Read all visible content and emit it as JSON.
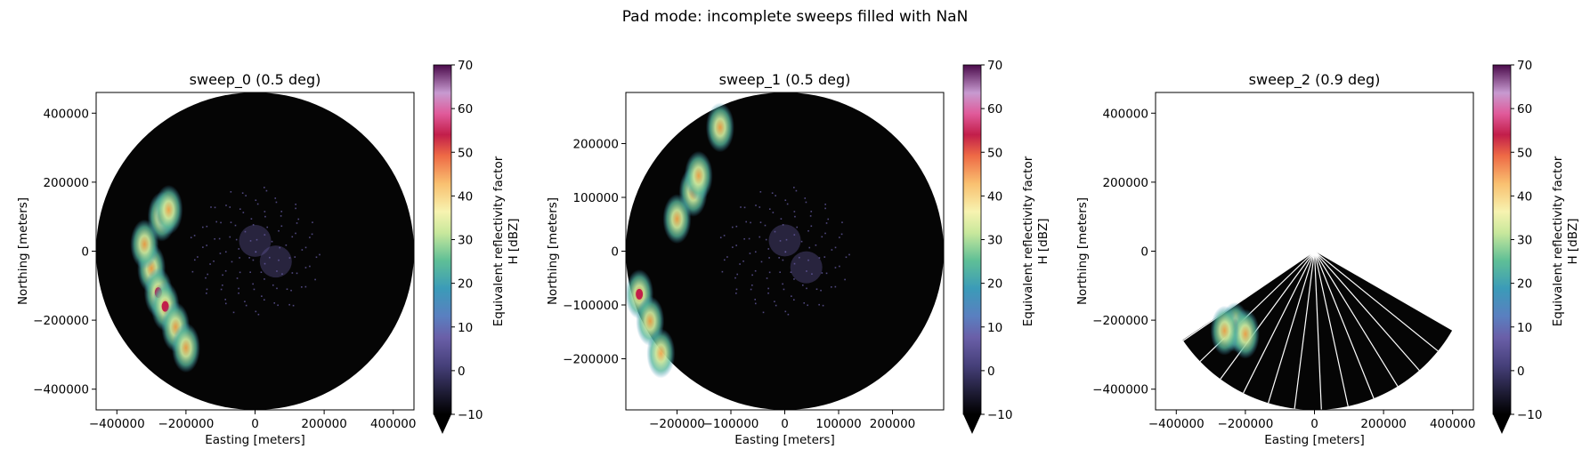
{
  "figure": {
    "suptitle": "Pad mode: incomplete sweeps filled with NaN"
  },
  "chart_data": [
    {
      "type": "heatmap",
      "title": "sweep_0 (0.5 deg)",
      "xlabel": "Easting [meters]",
      "ylabel": "Northing [meters]",
      "xlim": [
        -460000,
        460000
      ],
      "ylim": [
        -460000,
        460000
      ],
      "xticks": [
        -400000,
        -200000,
        0,
        200000,
        400000
      ],
      "xticklabels": [
        "−400000",
        "−200000",
        "0",
        "200000",
        "400000"
      ],
      "yticks": [
        -400000,
        -200000,
        0,
        200000,
        400000
      ],
      "yticklabels": [
        "−400000",
        "−200000",
        "0",
        "200000",
        "400000"
      ],
      "coverage": "full",
      "max_range": 460000,
      "echoes": [
        {
          "x": -270000,
          "y": 100000,
          "dbz": 30
        },
        {
          "x": -250000,
          "y": 120000,
          "dbz": 38
        },
        {
          "x": -300000,
          "y": -50000,
          "dbz": 28
        },
        {
          "x": -280000,
          "y": -120000,
          "dbz": 42
        },
        {
          "x": -260000,
          "y": -160000,
          "dbz": 45
        },
        {
          "x": -230000,
          "y": -220000,
          "dbz": 32
        },
        {
          "x": -200000,
          "y": -280000,
          "dbz": 25
        },
        {
          "x": -320000,
          "y": 20000,
          "dbz": 20
        },
        {
          "x": 0,
          "y": 30000,
          "dbz": 3
        },
        {
          "x": 60000,
          "y": -30000,
          "dbz": 3
        }
      ],
      "colorbar": {
        "label_line1": "Equivalent reflectivity factor",
        "label_line2": "H [dBZ]",
        "ticks": [
          "70",
          "60",
          "50",
          "40",
          "30",
          "20",
          "10",
          "0",
          "−10"
        ],
        "vmin": -10,
        "vmax": 70
      }
    },
    {
      "type": "heatmap",
      "title": "sweep_1 (0.5 deg)",
      "xlabel": "Easting [meters]",
      "ylabel": "Northing [meters]",
      "xlim": [
        -295000,
        295000
      ],
      "ylim": [
        -295000,
        295000
      ],
      "xticks": [
        -200000,
        -100000,
        0,
        100000,
        200000
      ],
      "xticklabels": [
        "−200000",
        "−100000",
        "0",
        "100000",
        "200000"
      ],
      "yticks": [
        -200000,
        -100000,
        0,
        100000,
        200000
      ],
      "yticklabels": [
        "−200000",
        "−100000",
        "0",
        "100000",
        "200000"
      ],
      "coverage": "full",
      "max_range": 295000,
      "echoes": [
        {
          "x": -170000,
          "y": 110000,
          "dbz": 30
        },
        {
          "x": -160000,
          "y": 140000,
          "dbz": 38
        },
        {
          "x": -200000,
          "y": 60000,
          "dbz": 25
        },
        {
          "x": -270000,
          "y": -80000,
          "dbz": 45
        },
        {
          "x": -250000,
          "y": -130000,
          "dbz": 30
        },
        {
          "x": -230000,
          "y": -190000,
          "dbz": 25
        },
        {
          "x": -120000,
          "y": 230000,
          "dbz": 20
        },
        {
          "x": 0,
          "y": 20000,
          "dbz": 3
        },
        {
          "x": 40000,
          "y": -30000,
          "dbz": 3
        }
      ],
      "colorbar": {
        "label_line1": "Equivalent reflectivity factor",
        "label_line2": "H [dBZ]",
        "ticks": [
          "70",
          "60",
          "50",
          "40",
          "30",
          "20",
          "10",
          "0",
          "−10"
        ],
        "vmin": -10,
        "vmax": 70
      }
    },
    {
      "type": "heatmap",
      "title": "sweep_2 (0.9 deg)",
      "xlabel": "Easting [meters]",
      "ylabel": "Northing [meters]",
      "xlim": [
        -460000,
        460000
      ],
      "ylim": [
        -460000,
        460000
      ],
      "xticks": [
        -400000,
        -200000,
        0,
        200000,
        400000
      ],
      "xticklabels": [
        "−400000",
        "−200000",
        "0",
        "200000",
        "400000"
      ],
      "yticks": [
        -400000,
        -200000,
        0,
        200000,
        400000
      ],
      "yticklabels": [
        "−400000",
        "−200000",
        "0",
        "200000",
        "400000"
      ],
      "coverage": "partial sector, NaN elsewhere",
      "max_range": 460000,
      "sector_azimuth_deg": [
        120,
        236
      ],
      "echoes": [
        {
          "x": -230000,
          "y": -220000,
          "dbz": 25
        },
        {
          "x": -200000,
          "y": -240000,
          "dbz": 30
        },
        {
          "x": -260000,
          "y": -230000,
          "dbz": 20
        }
      ],
      "colorbar": {
        "label_line1": "Equivalent reflectivity factor",
        "label_line2": "H [dBZ]",
        "ticks": [
          "70",
          "60",
          "50",
          "40",
          "30",
          "20",
          "10",
          "0",
          "−10"
        ],
        "vmin": -10,
        "vmax": 70
      }
    }
  ]
}
